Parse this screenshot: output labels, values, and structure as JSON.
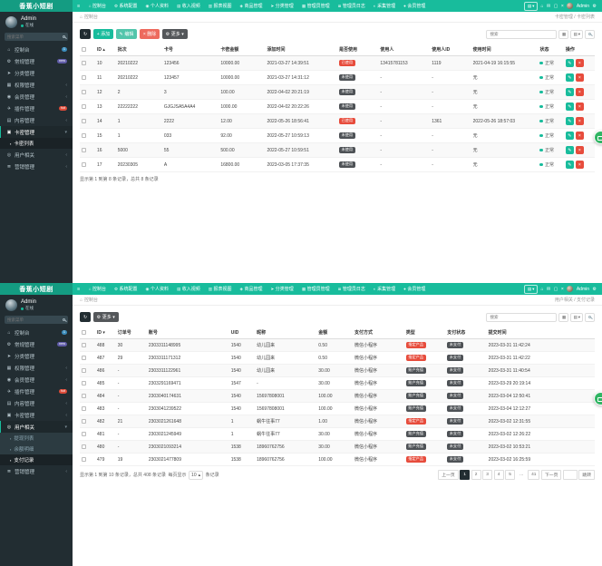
{
  "colors": {
    "navbar_green": "#18bc9c",
    "logo_bg": "#149c82",
    "sidebar_bg": "#222d32",
    "badge_blue": "#3c8dbc",
    "badge_purple": "#605ca8",
    "badge_red": "#dd4b39",
    "button_dark": "#222d32",
    "button_green": "#18bc9c",
    "button_light_green": "#52c5ab",
    "button_red": "#ed6a5e",
    "button_grey": "#54575a",
    "table_badge_red": "#e74c3c",
    "table_badge_dark": "#4e5256",
    "status_dot_green": "#18bc9c",
    "floating_button_green": "#31b564"
  },
  "shared": {
    "logo": "香蕉小短剧",
    "admin_name": "Admin",
    "online_label": "在线",
    "sidebar_search_placeholder": "搜索菜单",
    "toolbar_search_placeholder": "搜索",
    "nav_toggle_glyph": "≡",
    "collapse_glyph": "▤",
    "caret_glyph": "▾",
    "caret_up_glyph": "▴",
    "gear_glyph": "⚙",
    "home_glyph": "⌂",
    "nav": [
      {
        "name": "dashboard",
        "glyph": "⌂",
        "label": "控制台"
      },
      {
        "name": "system-config",
        "glyph": "⚙",
        "label": "系统配置"
      },
      {
        "name": "profile",
        "glyph": "◉",
        "label": "个人资料"
      },
      {
        "name": "income-report",
        "glyph": "▤",
        "label": "收入视频"
      },
      {
        "name": "report-view",
        "glyph": "▥",
        "label": "报表视图"
      },
      {
        "name": "goods-manage",
        "glyph": "◈",
        "label": "商品管理"
      },
      {
        "name": "category-manage",
        "glyph": "➤",
        "label": "分类管理"
      },
      {
        "name": "admin-manage",
        "glyph": "▦",
        "label": "管理员管理"
      },
      {
        "name": "admin-log",
        "glyph": "≣",
        "label": "管理员日志"
      },
      {
        "name": "collect-manage",
        "glyph": "◐",
        "label": "采集管理"
      },
      {
        "name": "member-manage",
        "glyph": "●",
        "label": "会员管理"
      }
    ],
    "nav_right": [
      {
        "name": "home",
        "glyph": "⌂"
      },
      {
        "name": "message",
        "glyph": "✉"
      },
      {
        "name": "fullscreen",
        "glyph": "▢"
      },
      {
        "name": "close",
        "glyph": "×"
      }
    ],
    "tools": [
      {
        "name": "view-toggle",
        "glyph": "▦"
      },
      {
        "name": "columns",
        "glyph": "▤",
        "caret": true
      },
      {
        "name": "advanced-search",
        "glyph": "mag"
      }
    ]
  },
  "panels": [
    {
      "id": "card-list",
      "breadcrumb": {
        "home": "控制台",
        "path": "卡密管理 / 卡密列表"
      },
      "menu": [
        {
          "name": "dashboard",
          "glyph": "⌂",
          "label": "控制台",
          "badge": {
            "text": "1",
            "color": "#3c8dbc"
          }
        },
        {
          "name": "general",
          "glyph": "⚙",
          "label": "常规管理",
          "badge": {
            "text": "new",
            "color": "#605ca8"
          }
        },
        {
          "name": "category",
          "glyph": "➤",
          "label": "分类管理"
        },
        {
          "name": "auth",
          "glyph": "▦",
          "label": "权限管理",
          "chevron": true
        },
        {
          "name": "member",
          "glyph": "◉",
          "label": "会员管理",
          "chevron": true
        },
        {
          "name": "addon",
          "glyph": "✈",
          "label": "插件管理",
          "badge": {
            "text": "hot",
            "color": "#dd4b39"
          }
        },
        {
          "name": "content",
          "glyph": "▤",
          "label": "内容管理",
          "chevron": true
        },
        {
          "name": "card",
          "glyph": "▣",
          "label": "卡密管理",
          "chevron": true,
          "open": true,
          "children": [
            {
              "name": "card-list",
              "glyph": "▪",
              "label": "卡密列表",
              "active": true
            }
          ]
        },
        {
          "name": "user-related",
          "glyph": "◎",
          "label": "用户相关",
          "chevron": true
        },
        {
          "name": "marketing",
          "glyph": "≣",
          "label": "营销管理",
          "chevron": true
        }
      ],
      "toolbar": {
        "buttons": [
          {
            "name": "refresh",
            "glyph": "↻",
            "style": "dark"
          },
          {
            "name": "add",
            "glyph": "+",
            "label": "添加",
            "style": "green"
          },
          {
            "name": "edit",
            "glyph": "✎",
            "label": "编辑",
            "style": "lightgreen"
          },
          {
            "name": "delete",
            "glyph": "×",
            "label": "删除",
            "style": "red"
          },
          {
            "name": "more",
            "glyph": "⚙",
            "label": "更多",
            "style": "grey",
            "caret": true
          }
        ]
      },
      "table": {
        "columns": [
          {
            "label": "",
            "type": "check",
            "w": "3%"
          },
          {
            "label": "ID",
            "key": "id",
            "w": "4%",
            "sort": "asc"
          },
          {
            "label": "批次",
            "key": "batch",
            "w": "9%"
          },
          {
            "label": "卡号",
            "key": "card_no",
            "w": "11%"
          },
          {
            "label": "卡密金额",
            "key": "amount",
            "w": "9%"
          },
          {
            "label": "添加时间",
            "key": "added_at",
            "w": "14%"
          },
          {
            "label": "是否使用",
            "key": "used",
            "type": "badge",
            "w": "8%"
          },
          {
            "label": "使用人",
            "key": "user",
            "w": "10%"
          },
          {
            "label": "使用人ID",
            "key": "user_id",
            "w": "8%"
          },
          {
            "label": "使用时间",
            "key": "used_at",
            "w": "13%"
          },
          {
            "label": "状态",
            "key": "status",
            "type": "status",
            "w": "5%"
          },
          {
            "label": "操作",
            "type": "actions",
            "w": "6%"
          }
        ],
        "ops": [
          {
            "name": "edit-row-button",
            "glyph": "✎",
            "style": "edit"
          },
          {
            "name": "delete-row-button",
            "glyph": "×",
            "style": "del"
          }
        ],
        "rows": [
          {
            "id": "10",
            "batch": "20210222",
            "card_no": "123456",
            "amount": "10000.00",
            "added_at": "2021-03-27 14:39:51",
            "used": {
              "label": "已使用",
              "style": "red"
            },
            "user": "13415781153",
            "user_id": "1119",
            "used_at": "2021-04-19 16:15:55",
            "status": "正常"
          },
          {
            "id": "11",
            "batch": "20210222",
            "card_no": "123457",
            "amount": "10000.00",
            "added_at": "2021-03-27 14:31:12",
            "used": {
              "label": "未使用",
              "style": "dark"
            },
            "user": "-",
            "user_id": "-",
            "used_at": "无",
            "status": "正常"
          },
          {
            "id": "12",
            "batch": "2",
            "card_no": "3",
            "amount": "100.00",
            "added_at": "2022-04-02 20:21:19",
            "used": {
              "label": "未使用",
              "style": "dark"
            },
            "user": "-",
            "user_id": "-",
            "used_at": "无",
            "status": "正常"
          },
          {
            "id": "13",
            "batch": "22222222",
            "card_no": "GJGJSA5A4A4",
            "amount": "1000.00",
            "added_at": "2022-04-02 20:22:26",
            "used": {
              "label": "未使用",
              "style": "dark"
            },
            "user": "-",
            "user_id": "-",
            "used_at": "无",
            "status": "正常"
          },
          {
            "id": "14",
            "batch": "1",
            "card_no": "2222",
            "amount": "12.00",
            "added_at": "2022-05-26 18:56:41",
            "used": {
              "label": "已使用",
              "style": "red"
            },
            "user": "-",
            "user_id": "1361",
            "used_at": "2022-05-26 18:57:03",
            "status": "正常"
          },
          {
            "id": "15",
            "batch": "1",
            "card_no": "033",
            "amount": "92.00",
            "added_at": "2022-05-27 10:59:13",
            "used": {
              "label": "未使用",
              "style": "dark"
            },
            "user": "-",
            "user_id": "-",
            "used_at": "无",
            "status": "正常"
          },
          {
            "id": "16",
            "batch": "5000",
            "card_no": "55",
            "amount": "500.00",
            "added_at": "2022-05-27 10:59:51",
            "used": {
              "label": "未使用",
              "style": "dark"
            },
            "user": "-",
            "user_id": "-",
            "used_at": "无",
            "status": "正常"
          },
          {
            "id": "17",
            "batch": "20230305",
            "card_no": "A",
            "amount": "16800.00",
            "added_at": "2023-03-05 17:37:35",
            "used": {
              "label": "未使用",
              "style": "dark"
            },
            "user": "-",
            "user_id": "-",
            "used_at": "无",
            "status": "正常"
          }
        ]
      },
      "footer": {
        "summary": "显示第 1 到第 8 条记录，总共 8 条记录"
      }
    },
    {
      "id": "pay-records",
      "breadcrumb": {
        "home": "控制台",
        "path": "用户相关 / 支付记录"
      },
      "menu": [
        {
          "name": "dashboard",
          "glyph": "⌂",
          "label": "控制台",
          "badge": {
            "text": "1",
            "color": "#3c8dbc"
          }
        },
        {
          "name": "general",
          "glyph": "⚙",
          "label": "常规管理",
          "badge": {
            "text": "new",
            "color": "#605ca8"
          }
        },
        {
          "name": "category",
          "glyph": "➤",
          "label": "分类管理"
        },
        {
          "name": "auth",
          "glyph": "▦",
          "label": "权限管理",
          "chevron": true
        },
        {
          "name": "member",
          "glyph": "◉",
          "label": "会员管理",
          "chevron": true
        },
        {
          "name": "addon",
          "glyph": "✈",
          "label": "插件管理",
          "badge": {
            "text": "hot",
            "color": "#dd4b39"
          }
        },
        {
          "name": "content",
          "glyph": "▤",
          "label": "内容管理",
          "chevron": true
        },
        {
          "name": "card",
          "glyph": "▣",
          "label": "卡密管理",
          "chevron": true
        },
        {
          "name": "user-related",
          "glyph": "◎",
          "label": "用户相关",
          "chevron": true,
          "open": true,
          "children": [
            {
              "name": "withdraw-list",
              "glyph": "▪",
              "label": "提现列表"
            },
            {
              "name": "balance-detail",
              "glyph": "▪",
              "label": "余额明细"
            },
            {
              "name": "pay-records",
              "glyph": "▪",
              "label": "支付记录",
              "active": true
            }
          ]
        },
        {
          "name": "marketing",
          "glyph": "≣",
          "label": "营销管理",
          "chevron": true
        }
      ],
      "toolbar": {
        "buttons": [
          {
            "name": "refresh",
            "glyph": "↻",
            "style": "dark"
          },
          {
            "name": "more",
            "glyph": "⚙",
            "label": "更多",
            "style": "grey",
            "caret": true
          }
        ]
      },
      "table": {
        "columns": [
          {
            "label": "",
            "type": "check",
            "w": "3%"
          },
          {
            "label": "ID",
            "key": "id",
            "w": "4%",
            "sort": "desc"
          },
          {
            "label": "订单号",
            "key": "order_id",
            "w": "6%"
          },
          {
            "label": "账号",
            "key": "account",
            "w": "16%"
          },
          {
            "label": "UID",
            "key": "uid",
            "w": "5%"
          },
          {
            "label": "昵称",
            "key": "nickname",
            "w": "12%"
          },
          {
            "label": "金额",
            "key": "amount",
            "w": "7%"
          },
          {
            "label": "支付方式",
            "key": "pay_method",
            "w": "10%"
          },
          {
            "label": "类型",
            "key": "type",
            "type": "badge",
            "w": "8%"
          },
          {
            "label": "支付状态",
            "key": "pay_status",
            "type": "badge",
            "w": "8%"
          },
          {
            "label": "提交时间",
            "key": "submitted_at",
            "w": "21%"
          }
        ],
        "rows": [
          {
            "id": "488",
            "order_id": "30",
            "account": "2303311148995",
            "uid": "1540",
            "nickname": "幼儿园来",
            "amount": "0.50",
            "pay_method": "微信小程序",
            "type": {
              "label": "指定产品",
              "style": "red"
            },
            "pay_status": {
              "label": "未支付",
              "style": "dark"
            },
            "submitted_at": "2023-03-31 11:42:24"
          },
          {
            "id": "487",
            "order_id": "29",
            "account": "2303311171312",
            "uid": "1540",
            "nickname": "幼儿园来",
            "amount": "0.50",
            "pay_method": "微信小程序",
            "type": {
              "label": "指定产品",
              "style": "red"
            },
            "pay_status": {
              "label": "未支付",
              "style": "dark"
            },
            "submitted_at": "2023-03-31 11:42:22"
          },
          {
            "id": "486",
            "order_id": "-",
            "account": "2303311122961",
            "uid": "1540",
            "nickname": "幼儿园来",
            "amount": "30.00",
            "pay_method": "微信小程序",
            "type": {
              "label": "账户充值",
              "style": "dark"
            },
            "pay_status": {
              "label": "未支付",
              "style": "dark"
            },
            "submitted_at": "2023-03-31 11:40:54"
          },
          {
            "id": "485",
            "order_id": "-",
            "account": "2303291169471",
            "uid": "1547",
            "nickname": "-",
            "amount": "30.00",
            "pay_method": "微信小程序",
            "type": {
              "label": "账户充值",
              "style": "dark"
            },
            "pay_status": {
              "label": "未支付",
              "style": "dark"
            },
            "submitted_at": "2023-03-29 20:19:14"
          },
          {
            "id": "484",
            "order_id": "-",
            "account": "2303040174631",
            "uid": "1540",
            "nickname": "15697808001",
            "amount": "100.00",
            "pay_method": "微信小程序",
            "type": {
              "label": "账户充值",
              "style": "dark"
            },
            "pay_status": {
              "label": "未支付",
              "style": "dark"
            },
            "submitted_at": "2023-03-04 12:50:41"
          },
          {
            "id": "483",
            "order_id": "-",
            "account": "2303041239522",
            "uid": "1540",
            "nickname": "15697808001",
            "amount": "100.00",
            "pay_method": "微信小程序",
            "type": {
              "label": "账户充值",
              "style": "dark"
            },
            "pay_status": {
              "label": "未支付",
              "style": "dark"
            },
            "submitted_at": "2023-03-04 12:12:27"
          },
          {
            "id": "482",
            "order_id": "21",
            "account": "2303021261648",
            "uid": "1",
            "nickname": "蜗牛往事77",
            "amount": "1.00",
            "pay_method": "微信小程序",
            "type": {
              "label": "指定产品",
              "style": "red"
            },
            "pay_status": {
              "label": "未支付",
              "style": "dark"
            },
            "submitted_at": "2023-03-02 12:31:55"
          },
          {
            "id": "481",
            "order_id": "-",
            "account": "2303021245949",
            "uid": "1",
            "nickname": "蜗牛往事77",
            "amount": "30.00",
            "pay_method": "微信小程序",
            "type": {
              "label": "账户充值",
              "style": "dark"
            },
            "pay_status": {
              "label": "未支付",
              "style": "dark"
            },
            "submitted_at": "2023-03-02 12:26:22"
          },
          {
            "id": "480",
            "order_id": "-",
            "account": "2303021093214",
            "uid": "1538",
            "nickname": "18960762756",
            "amount": "30.00",
            "pay_method": "微信小程序",
            "type": {
              "label": "账户充值",
              "style": "dark"
            },
            "pay_status": {
              "label": "未支付",
              "style": "dark"
            },
            "submitted_at": "2023-03-02 10:53:21"
          },
          {
            "id": "479",
            "order_id": "19",
            "account": "2303021477809",
            "uid": "1538",
            "nickname": "18960762756",
            "amount": "100.00",
            "pay_method": "微信小程序",
            "type": {
              "label": "指定产品",
              "style": "red"
            },
            "pay_status": {
              "label": "未支付",
              "style": "dark"
            },
            "submitted_at": "2023-03-02 16:25:59"
          }
        ]
      },
      "footer": {
        "summary": "显示第 1 到第 10 条记录，总共 408 条记录",
        "per_page_label": "每页显示",
        "per_page": "10",
        "per_page_suffix": "条记录"
      },
      "pagination": {
        "prev": "上一页",
        "pages": [
          "1",
          "2",
          "3",
          "4",
          "5",
          "...",
          "41"
        ],
        "active": "1",
        "next": "下一页",
        "jump_label": "跳转"
      }
    }
  ]
}
